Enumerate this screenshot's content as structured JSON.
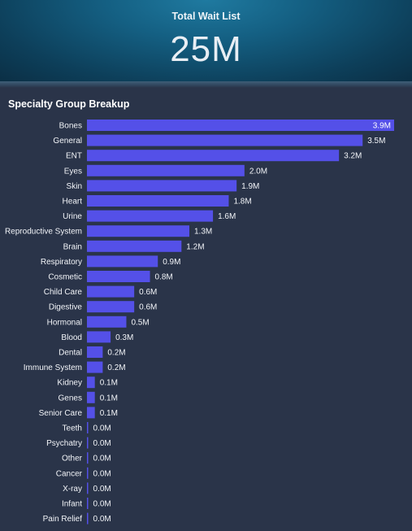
{
  "kpi": {
    "title": "Total Wait List",
    "value": "25M"
  },
  "chart_data": {
    "type": "bar",
    "orientation": "horizontal",
    "title": "Specialty Group Breakup",
    "bar_color": "#5450e8",
    "categories": [
      "Bones",
      "General",
      "ENT",
      "Eyes",
      "Skin",
      "Heart",
      "Urine",
      "Reproductive System",
      "Brain",
      "Respiratory",
      "Cosmetic",
      "Child Care",
      "Digestive",
      "Hormonal",
      "Blood",
      "Dental",
      "Immune System",
      "Kidney",
      "Genes",
      "Senior Care",
      "Teeth",
      "Psychatry",
      "Other",
      "Cancer",
      "X-ray",
      "Infant",
      "Pain Relief"
    ],
    "values": [
      3.9,
      3.5,
      3.2,
      2.0,
      1.9,
      1.8,
      1.6,
      1.3,
      1.2,
      0.9,
      0.8,
      0.6,
      0.6,
      0.5,
      0.3,
      0.2,
      0.2,
      0.1,
      0.1,
      0.1,
      0.0,
      0.0,
      0.0,
      0.0,
      0.0,
      0.0,
      0.0
    ],
    "labels": [
      "3.9M",
      "3.5M",
      "3.2M",
      "2.0M",
      "1.9M",
      "1.8M",
      "1.6M",
      "1.3M",
      "1.2M",
      "0.9M",
      "0.8M",
      "0.6M",
      "0.6M",
      "0.5M",
      "0.3M",
      "0.2M",
      "0.2M",
      "0.1M",
      "0.1M",
      "0.1M",
      "0.0M",
      "0.0M",
      "0.0M",
      "0.0M",
      "0.0M",
      "0.0M",
      "0.0M"
    ],
    "xlim": [
      0,
      3.9
    ],
    "grid": false
  }
}
